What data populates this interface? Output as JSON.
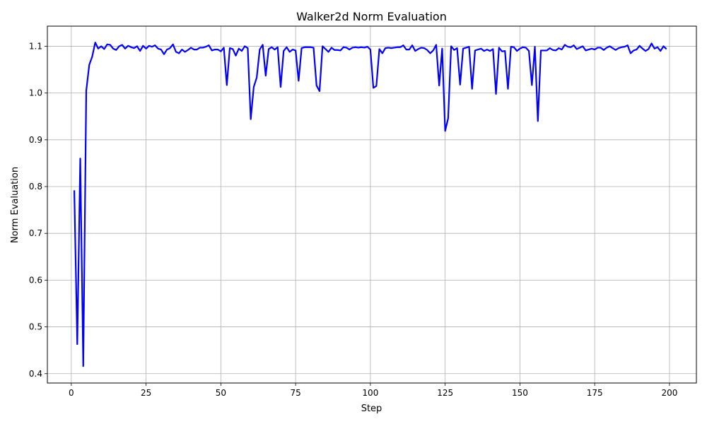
{
  "chart_data": {
    "type": "line",
    "title": "Walker2d Norm Evaluation",
    "xlabel": "Step",
    "ylabel": "Norm Evaluation",
    "xlim": [
      -8,
      209
    ],
    "ylim": [
      0.38,
      1.143
    ],
    "xticks": [
      0,
      25,
      50,
      75,
      100,
      125,
      150,
      175,
      200
    ],
    "yticks": [
      0.4,
      0.5,
      0.6,
      0.7,
      0.8,
      0.9,
      1.0,
      1.1
    ],
    "grid": true,
    "series": [
      {
        "color": "#0000ff",
        "x": [
          1,
          2,
          3,
          4,
          5,
          6,
          7,
          8,
          9,
          10,
          11,
          12,
          13,
          14,
          15,
          16,
          17,
          18,
          19,
          20,
          21,
          22,
          23,
          24,
          25,
          26,
          27,
          28,
          29,
          30,
          31,
          32,
          33,
          34,
          35,
          36,
          37,
          38,
          39,
          40,
          41,
          42,
          43,
          44,
          45,
          46,
          47,
          48,
          49,
          50,
          51,
          52,
          53,
          54,
          55,
          56,
          57,
          58,
          59,
          60,
          61,
          62,
          63,
          64,
          65,
          66,
          67,
          68,
          69,
          70,
          71,
          72,
          73,
          74,
          75,
          76,
          77,
          78,
          79,
          80,
          81,
          82,
          83,
          84,
          85,
          86,
          87,
          88,
          89,
          90,
          91,
          92,
          93,
          94,
          95,
          96,
          97,
          98,
          99,
          100,
          101,
          102,
          103,
          104,
          105,
          106,
          107,
          108,
          109,
          110,
          111,
          112,
          113,
          114,
          115,
          116,
          117,
          118,
          119,
          120,
          121,
          122,
          123,
          124,
          125,
          126,
          127,
          128,
          129,
          130,
          131,
          132,
          133,
          134,
          135,
          136,
          137,
          138,
          139,
          140,
          141,
          142,
          143,
          144,
          145,
          146,
          147,
          148,
          149,
          150,
          151,
          152,
          153,
          154,
          155,
          156,
          157,
          158,
          159,
          160,
          161,
          162,
          163,
          164,
          165,
          166,
          167,
          168,
          169,
          170,
          171,
          172,
          173,
          174,
          175,
          176,
          177,
          178,
          179,
          180,
          181,
          182,
          183,
          184,
          185,
          186,
          187,
          188,
          189,
          190,
          191,
          192,
          193,
          194,
          195,
          196,
          197,
          198,
          199
        ],
        "y": [
          0.792,
          0.463,
          0.86,
          0.416,
          1.005,
          1.06,
          1.078,
          1.108,
          1.095,
          1.1,
          1.094,
          1.104,
          1.103,
          1.095,
          1.092,
          1.1,
          1.103,
          1.095,
          1.101,
          1.098,
          1.096,
          1.1,
          1.09,
          1.101,
          1.095,
          1.101,
          1.099,
          1.102,
          1.095,
          1.093,
          1.083,
          1.093,
          1.096,
          1.104,
          1.088,
          1.085,
          1.093,
          1.088,
          1.092,
          1.097,
          1.093,
          1.093,
          1.097,
          1.097,
          1.099,
          1.102,
          1.091,
          1.093,
          1.093,
          1.089,
          1.097,
          1.017,
          1.096,
          1.094,
          1.08,
          1.095,
          1.09,
          1.1,
          1.096,
          0.944,
          1.013,
          1.033,
          1.093,
          1.103,
          1.037,
          1.094,
          1.098,
          1.093,
          1.098,
          1.013,
          1.09,
          1.098,
          1.088,
          1.093,
          1.091,
          1.026,
          1.096,
          1.098,
          1.098,
          1.098,
          1.097,
          1.016,
          1.004,
          1.1,
          1.094,
          1.088,
          1.097,
          1.092,
          1.092,
          1.091,
          1.098,
          1.097,
          1.093,
          1.097,
          1.098,
          1.097,
          1.098,
          1.097,
          1.099,
          1.093,
          1.011,
          1.015,
          1.094,
          1.085,
          1.096,
          1.097,
          1.096,
          1.097,
          1.098,
          1.098,
          1.102,
          1.093,
          1.093,
          1.102,
          1.09,
          1.094,
          1.097,
          1.096,
          1.092,
          1.085,
          1.091,
          1.103,
          1.016,
          1.095,
          0.919,
          0.946,
          1.1,
          1.092,
          1.096,
          1.018,
          1.095,
          1.097,
          1.099,
          1.009,
          1.091,
          1.093,
          1.095,
          1.09,
          1.093,
          1.09,
          1.094,
          0.998,
          1.097,
          1.089,
          1.09,
          1.009,
          1.099,
          1.098,
          1.09,
          1.095,
          1.098,
          1.097,
          1.09,
          1.017,
          1.099,
          0.94,
          1.091,
          1.091,
          1.091,
          1.096,
          1.092,
          1.091,
          1.096,
          1.093,
          1.103,
          1.099,
          1.098,
          1.102,
          1.094,
          1.097,
          1.1,
          1.091,
          1.093,
          1.095,
          1.093,
          1.097,
          1.097,
          1.092,
          1.097,
          1.1,
          1.096,
          1.092,
          1.096,
          1.098,
          1.099,
          1.102,
          1.085,
          1.091,
          1.093,
          1.101,
          1.095,
          1.09,
          1.094,
          1.106,
          1.095,
          1.098,
          1.09,
          1.1,
          1.094
        ]
      }
    ]
  }
}
